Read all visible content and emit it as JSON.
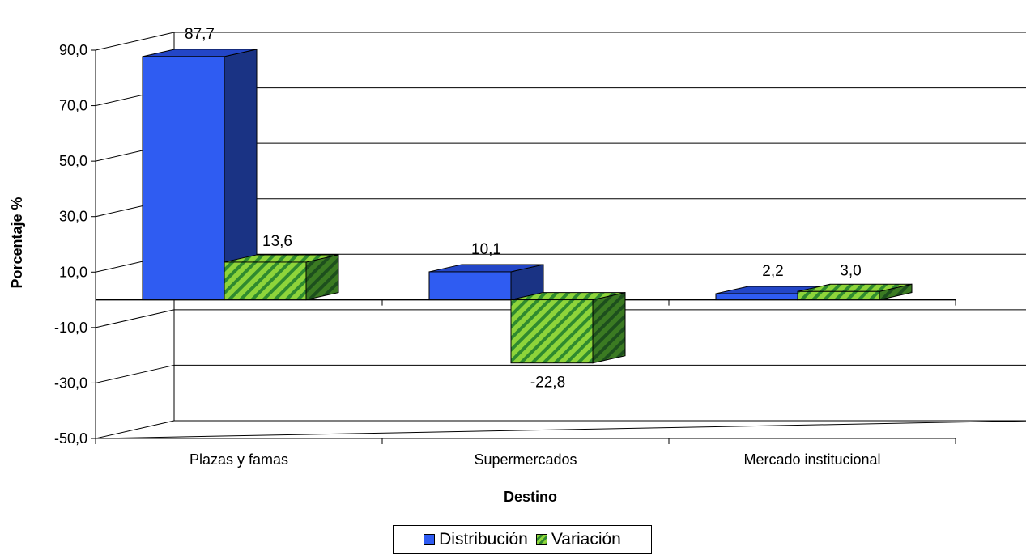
{
  "chart_data": {
    "type": "bar",
    "title": "",
    "xlabel": "Destino",
    "ylabel": "Porcentaje %",
    "ylim": [
      -50,
      90
    ],
    "yticks": [
      -50,
      -30,
      -10,
      10,
      30,
      50,
      70,
      90
    ],
    "ytick_labels": [
      "-50,0",
      "-30,0",
      "-10,0",
      "10,0",
      "30,0",
      "50,0",
      "70,0",
      "90,0"
    ],
    "categories": [
      "Plazas y famas",
      "Supermercados",
      "Mercado institucional"
    ],
    "series": [
      {
        "name": "Distribución",
        "values": [
          87.7,
          10.1,
          2.2
        ],
        "labels": [
          "87,7",
          "10,1",
          "2,2"
        ],
        "color": "#2f5cf2",
        "side_color": "#1a3384",
        "top_color": "#2346c7"
      },
      {
        "name": "Variación",
        "values": [
          13.6,
          -22.8,
          3.0
        ],
        "labels": [
          "13,6",
          "-22,8",
          "3,0"
        ],
        "color": "#7fcc3a",
        "stripe_color": "#2f8a2f",
        "side_color": "#1f5e1f"
      }
    ],
    "grid": true,
    "legend_position": "bottom",
    "style": "3d-clustered-bar"
  }
}
